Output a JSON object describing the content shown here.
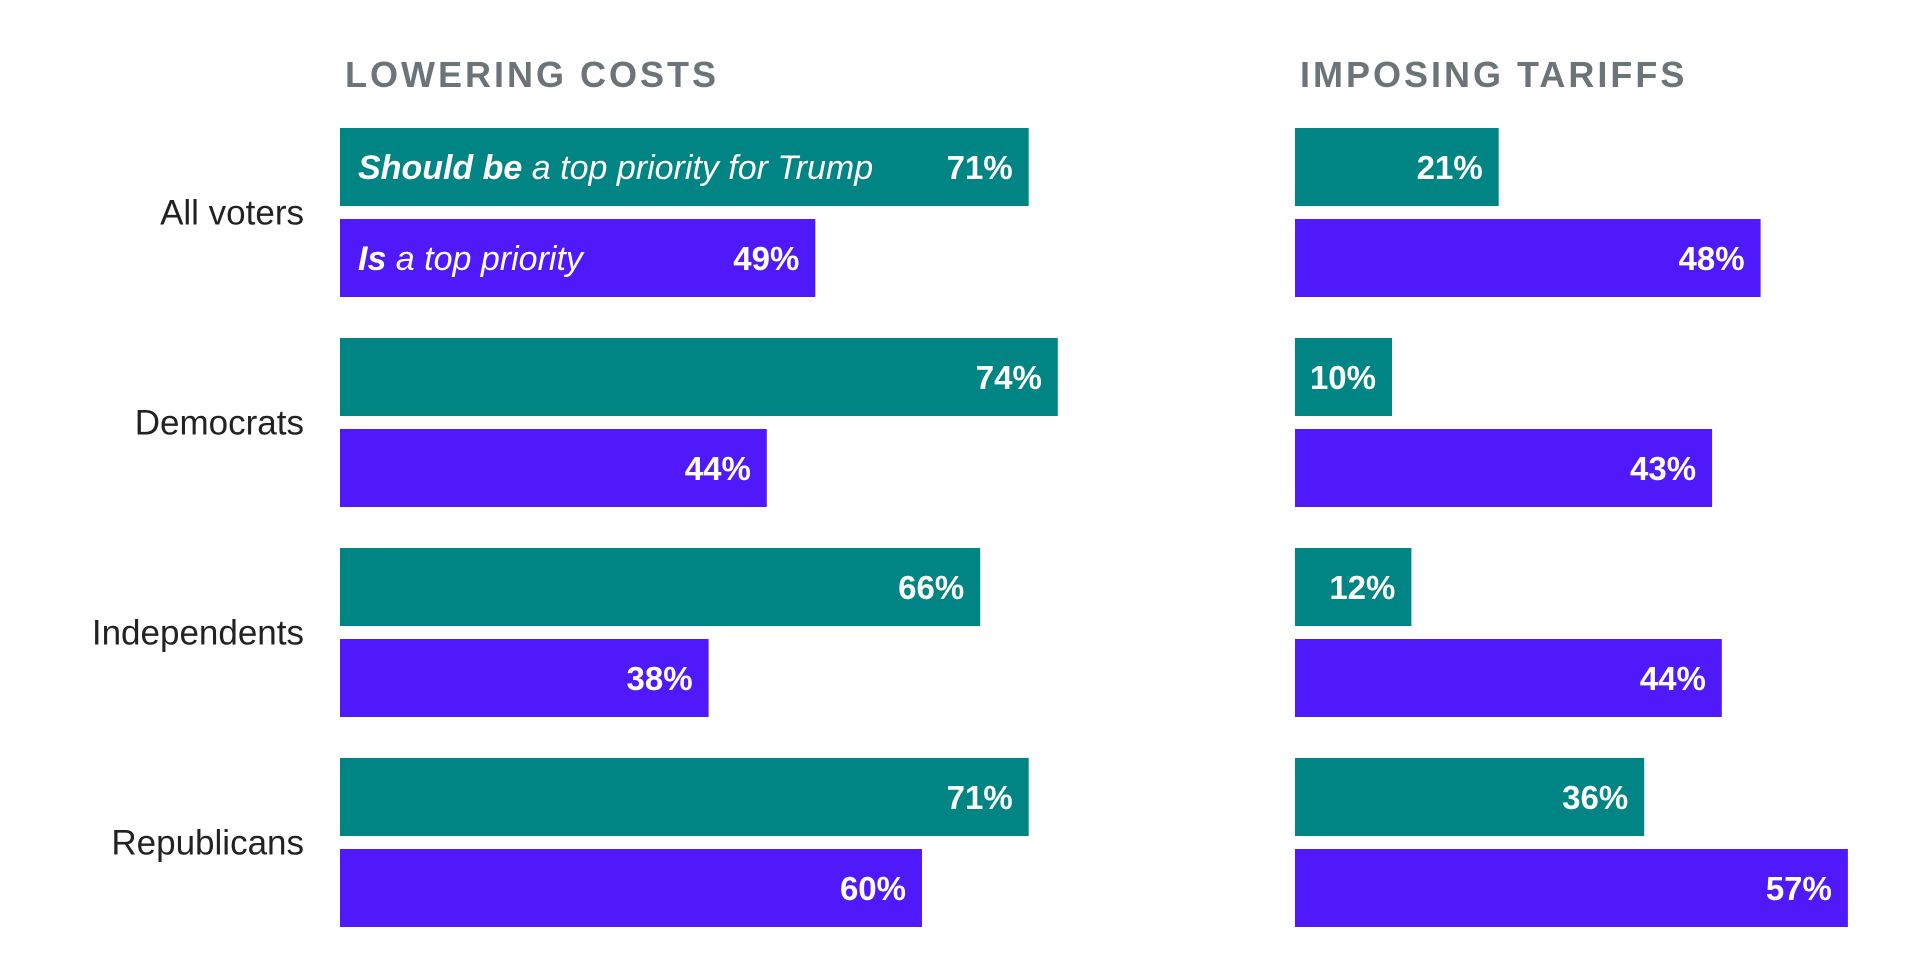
{
  "chart_data": {
    "type": "bar",
    "orientation": "horizontal",
    "categories": [
      "All voters",
      "Democrats",
      "Independents",
      "Republicans"
    ],
    "series_colors": [
      "#008584",
      "#4f19fa"
    ],
    "title_color": "#6b7579",
    "panels": [
      {
        "title": "LOWERING COSTS",
        "xlim": [
          0,
          100
        ],
        "series": [
          {
            "name": "Should be a top priority for Trump",
            "values": [
              71,
              74,
              66,
              71
            ]
          },
          {
            "name": "Is a top priority",
            "values": [
              49,
              44,
              38,
              60
            ]
          }
        ]
      },
      {
        "title": "IMPOSING TARIFFS",
        "xlim": [
          0,
          100
        ],
        "series": [
          {
            "values": [
              21,
              10,
              12,
              36
            ]
          },
          {
            "values": [
              48,
              43,
              44,
              57
            ]
          }
        ]
      }
    ],
    "legend": {
      "placement": "inside-first-bars",
      "entries": [
        {
          "bold": "Should be",
          "rest": " a top priority for Trump"
        },
        {
          "bold": "Is",
          "rest": " a top priority"
        }
      ]
    },
    "value_suffix": "%"
  }
}
